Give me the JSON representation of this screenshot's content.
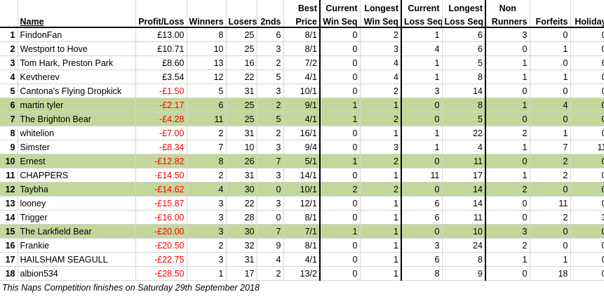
{
  "headers": {
    "name": "Name",
    "profit": "Profit/Loss",
    "winners": "Winners",
    "losers": "Losers",
    "seconds": "2nds",
    "best_price_1": "Best",
    "best_price_2": "Price",
    "cur_win_1": "Current",
    "cur_win_2": "Win Seq",
    "long_win_1": "Longest",
    "long_win_2": "Win Seq",
    "cur_loss_1": "Current",
    "cur_loss_2": "Loss Seq",
    "long_loss_1": "Longest",
    "long_loss_2": "Loss Seq",
    "nonrunners_1": "Non",
    "nonrunners_2": "Runners",
    "forfeits": "Forfeits",
    "holiday": "Holiday"
  },
  "rows": [
    {
      "rank": "1",
      "name": "FindonFan",
      "profit": "£13.00",
      "winners": "8",
      "losers": "25",
      "seconds": "6",
      "best": "8/1",
      "cur_win": "0",
      "long_win": "2",
      "cur_loss": "1",
      "long_loss": "6",
      "nonrunners": "3",
      "forfeits": "0",
      "holiday": "0"
    },
    {
      "rank": "2",
      "name": "Westport to Hove",
      "profit": "£10.71",
      "winners": "10",
      "losers": "25",
      "seconds": "3",
      "best": "8/1",
      "cur_win": "0",
      "long_win": "3",
      "cur_loss": "4",
      "long_loss": "6",
      "nonrunners": "0",
      "forfeits": "1",
      "holiday": "0"
    },
    {
      "rank": "3",
      "name": "Tom Hark, Preston Park",
      "profit": "£8.60",
      "winners": "13",
      "losers": "16",
      "seconds": "2",
      "best": "7/2",
      "cur_win": "0",
      "long_win": "4",
      "cur_loss": "1",
      "long_loss": "5",
      "nonrunners": "1",
      "forfeits": "0",
      "holiday": "6"
    },
    {
      "rank": "4",
      "name": "Kevtherev",
      "profit": "£3.54",
      "winners": "12",
      "losers": "22",
      "seconds": "5",
      "best": "4/1",
      "cur_win": "0",
      "long_win": "4",
      "cur_loss": "1",
      "long_loss": "8",
      "nonrunners": "1",
      "forfeits": "1",
      "holiday": "0"
    },
    {
      "rank": "5",
      "name": "Cantona's Flying Dropkick",
      "profit": "-£1.50",
      "winners": "5",
      "losers": "31",
      "seconds": "3",
      "best": "10/1",
      "cur_win": "0",
      "long_win": "2",
      "cur_loss": "3",
      "long_loss": "14",
      "nonrunners": "0",
      "forfeits": "0",
      "holiday": "0"
    },
    {
      "rank": "6",
      "name": "martin tyler",
      "profit": "-£2.17",
      "winners": "6",
      "losers": "25",
      "seconds": "2",
      "best": "9/1",
      "cur_win": "1",
      "long_win": "1",
      "cur_loss": "0",
      "long_loss": "8",
      "nonrunners": "1",
      "forfeits": "4",
      "holiday": "0",
      "hl": true
    },
    {
      "rank": "7",
      "name": "The Brighton Bear",
      "profit": "-£4.28",
      "winners": "11",
      "losers": "25",
      "seconds": "5",
      "best": "4/1",
      "cur_win": "1",
      "long_win": "2",
      "cur_loss": "0",
      "long_loss": "5",
      "nonrunners": "0",
      "forfeits": "0",
      "holiday": "0",
      "hl": true
    },
    {
      "rank": "8",
      "name": "whitelion",
      "profit": "-£7.00",
      "winners": "2",
      "losers": "31",
      "seconds": "2",
      "best": "16/1",
      "cur_win": "0",
      "long_win": "1",
      "cur_loss": "1",
      "long_loss": "22",
      "nonrunners": "2",
      "forfeits": "1",
      "holiday": "0"
    },
    {
      "rank": "9",
      "name": "Simster",
      "profit": "-£8.34",
      "winners": "7",
      "losers": "10",
      "seconds": "3",
      "best": "9/4",
      "cur_win": "0",
      "long_win": "3",
      "cur_loss": "1",
      "long_loss": "4",
      "nonrunners": "1",
      "forfeits": "7",
      "holiday": "11"
    },
    {
      "rank": "10",
      "name": "Ernest",
      "profit": "-£12.82",
      "winners": "8",
      "losers": "26",
      "seconds": "7",
      "best": "5/1",
      "cur_win": "1",
      "long_win": "2",
      "cur_loss": "0",
      "long_loss": "11",
      "nonrunners": "0",
      "forfeits": "2",
      "holiday": "0",
      "hl": true
    },
    {
      "rank": "11",
      "name": "CHAPPERS",
      "profit": "-£14.50",
      "winners": "2",
      "losers": "31",
      "seconds": "3",
      "best": "14/1",
      "cur_win": "0",
      "long_win": "1",
      "cur_loss": "11",
      "long_loss": "17",
      "nonrunners": "1",
      "forfeits": "2",
      "holiday": "0"
    },
    {
      "rank": "12",
      "name": "Taybha",
      "profit": "-£14.62",
      "winners": "4",
      "losers": "30",
      "seconds": "0",
      "best": "10/1",
      "cur_win": "2",
      "long_win": "2",
      "cur_loss": "0",
      "long_loss": "14",
      "nonrunners": "2",
      "forfeits": "0",
      "holiday": "0",
      "hl": true
    },
    {
      "rank": "13",
      "name": "looney",
      "profit": "-£15.87",
      "winners": "3",
      "losers": "22",
      "seconds": "3",
      "best": "12/1",
      "cur_win": "0",
      "long_win": "1",
      "cur_loss": "6",
      "long_loss": "14",
      "nonrunners": "0",
      "forfeits": "11",
      "holiday": "0"
    },
    {
      "rank": "14",
      "name": "Trigger",
      "profit": "-£16.00",
      "winners": "3",
      "losers": "28",
      "seconds": "0",
      "best": "8/1",
      "cur_win": "0",
      "long_win": "1",
      "cur_loss": "6",
      "long_loss": "11",
      "nonrunners": "0",
      "forfeits": "2",
      "holiday": "3"
    },
    {
      "rank": "15",
      "name": "The Larkfield Bear",
      "profit": "-£20.00",
      "winners": "3",
      "losers": "30",
      "seconds": "7",
      "best": "7/1",
      "cur_win": "1",
      "long_win": "1",
      "cur_loss": "0",
      "long_loss": "10",
      "nonrunners": "3",
      "forfeits": "0",
      "holiday": "0",
      "hl": true
    },
    {
      "rank": "16",
      "name": "Frankie",
      "profit": "-£20.50",
      "winners": "2",
      "losers": "32",
      "seconds": "9",
      "best": "8/1",
      "cur_win": "0",
      "long_win": "1",
      "cur_loss": "3",
      "long_loss": "24",
      "nonrunners": "2",
      "forfeits": "0",
      "holiday": "0"
    },
    {
      "rank": "17",
      "name": "HAILSHAM SEAGULL",
      "profit": "-£22.75",
      "winners": "3",
      "losers": "31",
      "seconds": "4",
      "best": "4/1",
      "cur_win": "0",
      "long_win": "1",
      "cur_loss": "6",
      "long_loss": "8",
      "nonrunners": "1",
      "forfeits": "1",
      "holiday": "0"
    },
    {
      "rank": "18",
      "name": "albion534",
      "profit": "-£28.50",
      "winners": "1",
      "losers": "17",
      "seconds": "2",
      "best": "13/2",
      "cur_win": "0",
      "long_win": "1",
      "cur_loss": "8",
      "long_loss": "9",
      "nonrunners": "0",
      "forfeits": "18",
      "holiday": "0"
    }
  ],
  "footer": "This Naps Competition finishes on Saturday 29th September 2018",
  "colors": {
    "highlight": "#c4d79b",
    "negative": "#ff0000"
  }
}
